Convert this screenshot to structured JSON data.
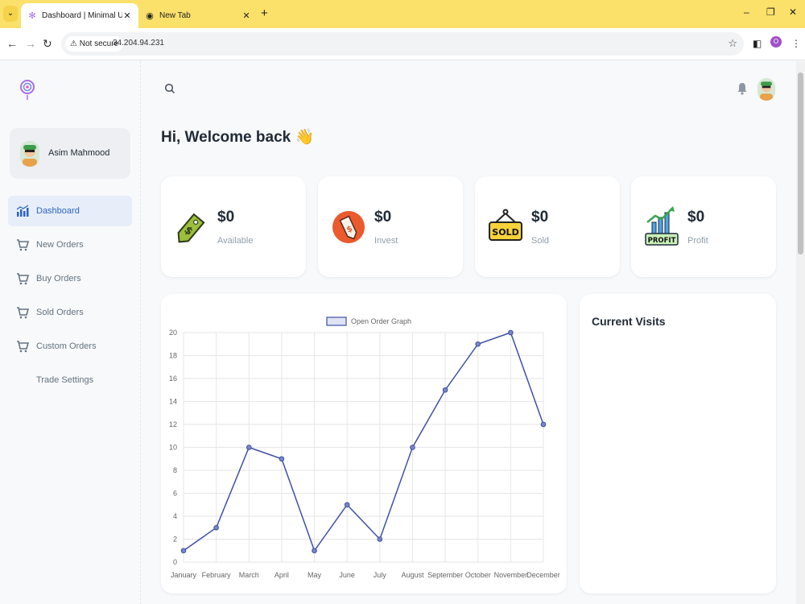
{
  "browser": {
    "tabs": [
      {
        "title": "Dashboard | Minimal UI",
        "active": true
      },
      {
        "title": "New Tab",
        "active": false
      }
    ],
    "security_label": "Not secure",
    "url": "34.204.94.231",
    "profile_initial": "O"
  },
  "sidebar": {
    "account_name": "Asim Mahmood",
    "items": [
      {
        "label": "Dashboard",
        "icon": "chart-icon",
        "active": true
      },
      {
        "label": "New Orders",
        "icon": "cart-icon",
        "active": false
      },
      {
        "label": "Buy Orders",
        "icon": "cart-icon",
        "active": false
      },
      {
        "label": "Sold Orders",
        "icon": "cart-icon",
        "active": false
      },
      {
        "label": "Custom Orders",
        "icon": "cart-icon",
        "active": false
      },
      {
        "label": "Trade Settings",
        "icon": "",
        "active": false
      }
    ]
  },
  "header": {
    "welcome": "Hi, Welcome back 👋"
  },
  "stats": [
    {
      "value": "$0",
      "label": "Available",
      "icon": "price-tag-icon"
    },
    {
      "value": "$0",
      "label": "Invest",
      "icon": "invest-tag-icon"
    },
    {
      "value": "$0",
      "label": "Sold",
      "icon": "sold-sign-icon",
      "icon_text": "SOLD"
    },
    {
      "value": "$0",
      "label": "Profit",
      "icon": "profit-chart-icon",
      "icon_text": "PROFIT"
    }
  ],
  "visits": {
    "title": "Current Visits"
  },
  "chart_data": {
    "type": "line",
    "categories": [
      "January",
      "February",
      "March",
      "April",
      "May",
      "June",
      "July",
      "August",
      "September",
      "October",
      "November",
      "December"
    ],
    "series": [
      {
        "name": "Open Order Graph",
        "values": [
          1,
          3,
          10,
          9,
          1,
          5,
          2,
          10,
          15,
          19,
          20,
          12
        ],
        "color": "#3f51a5"
      }
    ],
    "ylim": [
      0,
      20
    ],
    "yticks": [
      0,
      2,
      4,
      6,
      8,
      10,
      12,
      14,
      16,
      18,
      20
    ],
    "grid": true,
    "legend": "top-center"
  }
}
